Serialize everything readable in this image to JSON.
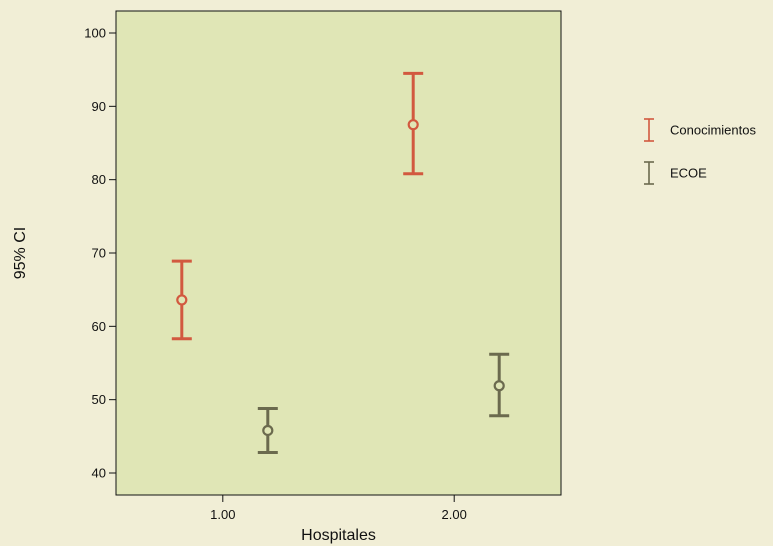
{
  "chart_data": {
    "type": "errorbar",
    "xlabel": "Hospitales",
    "ylabel": "95% CI",
    "categories": [
      "1.00",
      "2.00"
    ],
    "ylim": [
      37,
      103
    ],
    "yticks": [
      40,
      50,
      60,
      70,
      80,
      90,
      100
    ],
    "grid": false,
    "legend_position": "right",
    "series": [
      {
        "name": "Conocimientos",
        "color": "#d2593f",
        "points": [
          {
            "x": "1.00",
            "mean": 63.6,
            "lower": 58.3,
            "upper": 68.9
          },
          {
            "x": "2.00",
            "mean": 87.5,
            "lower": 80.8,
            "upper": 94.5
          }
        ]
      },
      {
        "name": "ECOE",
        "color": "#6b6a4e",
        "points": [
          {
            "x": "1.00",
            "mean": 45.8,
            "lower": 42.8,
            "upper": 48.8
          },
          {
            "x": "2.00",
            "mean": 51.9,
            "lower": 47.8,
            "upper": 56.2
          }
        ]
      }
    ]
  },
  "colors": {
    "page_background": "#f1eed6",
    "plot_background": "#e0e6b6",
    "axis": "#111111"
  }
}
